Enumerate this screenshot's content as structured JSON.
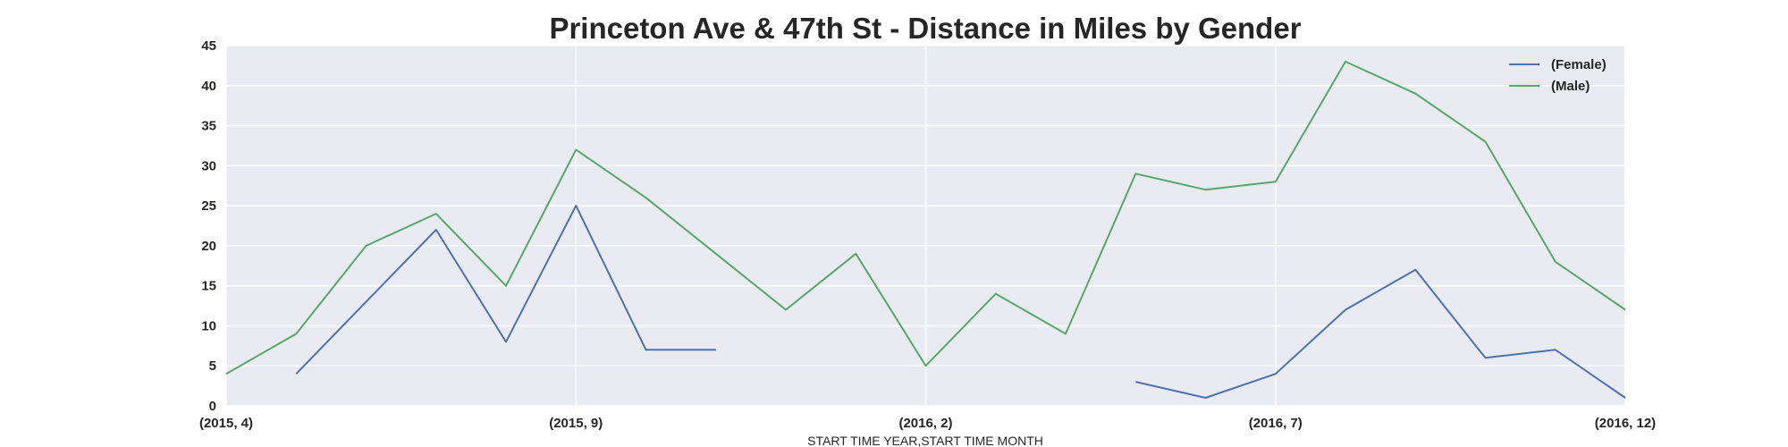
{
  "chart_data": {
    "type": "line",
    "title": "Princeton Ave & 47th St - Distance in Miles by Gender",
    "xlabel": "START TIME YEAR,START TIME MONTH",
    "ylabel": "",
    "ylim": [
      0,
      45
    ],
    "yticks": [
      0,
      5,
      10,
      15,
      20,
      25,
      30,
      35,
      40,
      45
    ],
    "categories": [
      "(2015, 4)",
      "(2015, 5)",
      "(2015, 6)",
      "(2015, 7)",
      "(2015, 8)",
      "(2015, 9)",
      "(2015, 10)",
      "(2015, 11)",
      "(2015, 12)",
      "(2016, 1)",
      "(2016, 2)",
      "(2016, 3)",
      "(2016, 4)",
      "(2016, 5)",
      "(2016, 6)",
      "(2016, 7)",
      "(2016, 8)",
      "(2016, 9)",
      "(2016, 10)",
      "(2016, 11)",
      "(2016, 12)"
    ],
    "xtick_labels": [
      "(2015, 4)",
      "(2015, 9)",
      "(2016, 2)",
      "(2016, 7)",
      "(2016, 12)"
    ],
    "xtick_indices": [
      0,
      5,
      10,
      15,
      20
    ],
    "grid": true,
    "legend_position": "top-right",
    "series": [
      {
        "name": "(Female)",
        "color": "#4c72b0",
        "values": [
          null,
          4,
          13,
          22,
          8,
          25,
          7,
          7,
          null,
          null,
          null,
          null,
          null,
          3,
          1,
          4,
          12,
          17,
          6,
          7,
          1
        ]
      },
      {
        "name": "(Male)",
        "color": "#55a868",
        "values": [
          4,
          9,
          20,
          24,
          15,
          32,
          26,
          19,
          12,
          19,
          5,
          14,
          9,
          29,
          27,
          28,
          43,
          39,
          33,
          18,
          12
        ]
      }
    ]
  }
}
